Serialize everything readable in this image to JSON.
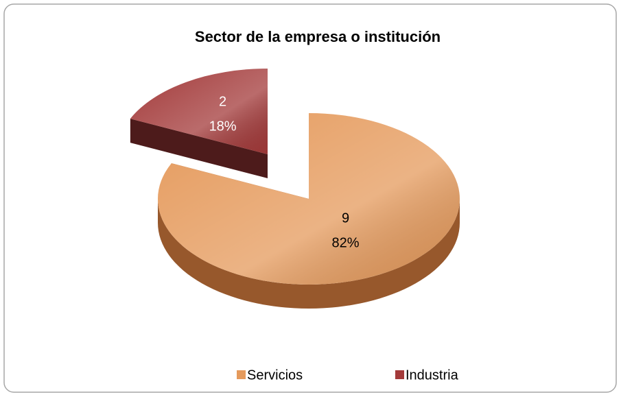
{
  "chart_data": {
    "type": "pie3d",
    "title": "Sector de la empresa o institución",
    "categories": [
      "Servicios",
      "Industria"
    ],
    "values": [
      9,
      2
    ],
    "percent_labels": [
      "82%",
      "18%"
    ],
    "colors": [
      "#e59a5c",
      "#a33a3a"
    ],
    "side_colors": [
      "#97582c",
      "#4d1b1b"
    ],
    "exploded": [
      false,
      true
    ],
    "legend": "bottom"
  }
}
